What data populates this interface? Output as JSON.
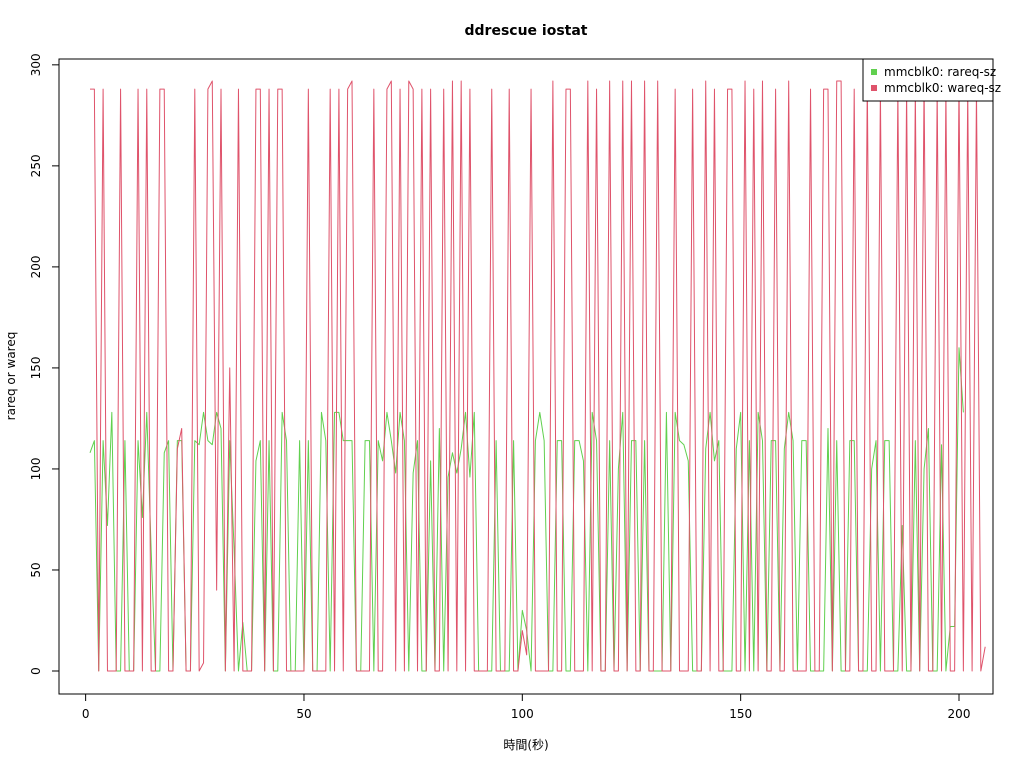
{
  "chart_data": {
    "type": "line",
    "title": "ddrescue iostat",
    "xlabel": "時間(秒)",
    "ylabel": "rareq or wareq",
    "xlim": [
      1,
      200
    ],
    "ylim": [
      0,
      292
    ],
    "x_ticks": [
      0,
      50,
      100,
      150,
      200
    ],
    "x_tick_labels": [
      "0",
      "50",
      "100",
      "150",
      "200"
    ],
    "y_ticks": [
      0,
      50,
      100,
      150,
      200,
      250,
      300
    ],
    "y_tick_labels": [
      "0",
      "50",
      "100",
      "150",
      "200",
      "250",
      "300"
    ],
    "grid": false,
    "legend_position": "top-right",
    "series": [
      {
        "name": "mmcblk0: rareq-sz",
        "color": "#61d04f",
        "values": [
          108,
          114,
          0,
          114,
          72,
          128,
          0,
          0,
          114,
          0,
          0,
          114,
          76,
          128,
          60,
          0,
          0,
          108,
          114,
          0,
          114,
          114,
          0,
          0,
          114,
          112,
          128,
          114,
          112,
          128,
          120,
          0,
          114,
          60,
          0,
          24,
          0,
          0,
          104,
          114,
          0,
          114,
          0,
          0,
          128,
          114,
          0,
          0,
          114,
          0,
          114,
          0,
          0,
          128,
          114,
          0,
          128,
          128,
          114,
          114,
          114,
          0,
          0,
          114,
          114,
          0,
          114,
          104,
          128,
          114,
          98,
          128,
          114,
          0,
          98,
          114,
          0,
          0,
          104,
          0,
          120,
          0,
          96,
          108,
          98,
          110,
          128,
          96,
          128,
          0,
          0,
          0,
          0,
          114,
          0,
          0,
          0,
          114,
          0,
          30,
          20,
          0,
          114,
          128,
          114,
          0,
          0,
          114,
          114,
          0,
          0,
          114,
          114,
          104,
          0,
          128,
          114,
          0,
          0,
          114,
          0,
          100,
          128,
          0,
          114,
          114,
          0,
          114,
          0,
          0,
          0,
          0,
          128,
          0,
          128,
          114,
          112,
          104,
          0,
          0,
          0,
          110,
          128,
          104,
          114,
          0,
          0,
          0,
          110,
          128,
          0,
          114,
          0,
          128,
          114,
          0,
          114,
          114,
          0,
          110,
          128,
          114,
          0,
          114,
          114,
          0,
          0,
          0,
          0,
          120,
          0,
          114,
          0,
          0,
          114,
          114,
          0,
          0,
          0,
          100,
          114,
          0,
          114,
          114,
          0,
          0,
          72,
          0,
          0,
          114,
          0,
          100,
          120,
          0,
          0,
          112,
          0,
          22,
          22,
          160,
          128
        ]
      },
      {
        "name": "mmcblk0: wareq-sz",
        "color": "#df536b",
        "values": [
          288,
          288,
          0,
          288,
          0,
          0,
          0,
          288,
          0,
          0,
          0,
          288,
          0,
          288,
          0,
          0,
          288,
          288,
          0,
          0,
          110,
          120,
          0,
          0,
          288,
          0,
          4,
          288,
          292,
          40,
          288,
          0,
          150,
          0,
          288,
          0,
          0,
          0,
          288,
          288,
          0,
          288,
          0,
          288,
          288,
          0,
          0,
          0,
          0,
          0,
          288,
          0,
          0,
          0,
          0,
          288,
          0,
          288,
          0,
          288,
          292,
          0,
          0,
          0,
          0,
          288,
          0,
          0,
          288,
          292,
          0,
          288,
          0,
          292,
          288,
          0,
          288,
          0,
          288,
          0,
          0,
          288,
          0,
          292,
          0,
          292,
          0,
          288,
          0,
          0,
          0,
          0,
          288,
          0,
          0,
          0,
          288,
          0,
          0,
          20,
          8,
          288,
          0,
          0,
          0,
          0,
          292,
          0,
          0,
          288,
          288,
          0,
          0,
          0,
          292,
          0,
          288,
          0,
          0,
          292,
          0,
          0,
          292,
          0,
          292,
          0,
          0,
          292,
          0,
          0,
          292,
          0,
          0,
          0,
          288,
          0,
          0,
          0,
          288,
          0,
          0,
          292,
          0,
          288,
          0,
          0,
          288,
          288,
          0,
          0,
          292,
          0,
          288,
          0,
          292,
          0,
          0,
          288,
          0,
          0,
          292,
          0,
          0,
          0,
          0,
          288,
          0,
          0,
          288,
          288,
          0,
          292,
          292,
          0,
          0,
          288,
          0,
          0,
          292,
          0,
          0,
          288,
          0,
          0,
          0,
          288,
          0,
          288,
          0,
          288,
          0,
          292,
          0,
          0,
          288,
          0,
          288,
          0,
          0,
          292,
          0,
          288,
          0,
          288,
          0,
          12
        ]
      }
    ]
  }
}
